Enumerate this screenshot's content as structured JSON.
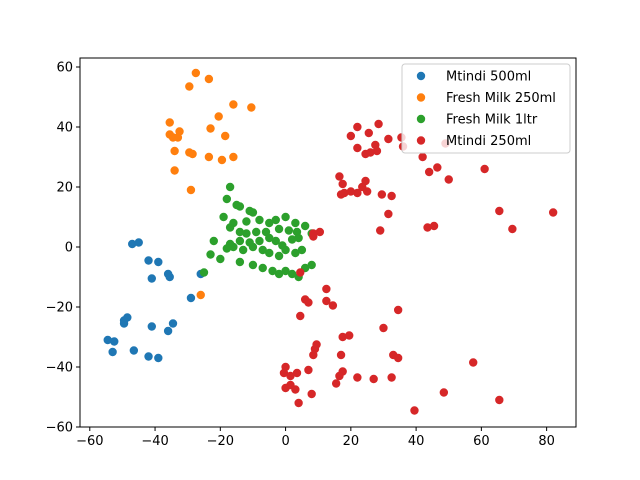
{
  "chart_data": {
    "type": "scatter",
    "title": "",
    "xlabel": "",
    "ylabel": "",
    "xlim": [
      -63,
      89
    ],
    "ylim": [
      -60,
      63
    ],
    "xticks": [
      -60,
      -40,
      -20,
      0,
      20,
      40,
      60,
      80
    ],
    "yticks": [
      -60,
      -40,
      -20,
      0,
      20,
      40,
      60
    ],
    "tick_labels": {
      "x": [
        "−60",
        "−40",
        "−20",
        "0",
        "20",
        "40",
        "60",
        "80"
      ],
      "y": [
        "−60",
        "−40",
        "−20",
        "0",
        "20",
        "40",
        "60"
      ]
    },
    "grid": false,
    "legend_position": "top-right",
    "series": [
      {
        "name": "Mtindi 500ml",
        "color": "#1f77b4",
        "points": [
          [
            -47,
            1
          ],
          [
            -45,
            1.5
          ],
          [
            -42,
            -4.5
          ],
          [
            -39,
            -5
          ],
          [
            -41,
            -10.5
          ],
          [
            -36,
            -9
          ],
          [
            -35.5,
            -10
          ],
          [
            -26,
            -9
          ],
          [
            -29,
            -17
          ],
          [
            -34.5,
            -25.5
          ],
          [
            -36,
            -28
          ],
          [
            -41,
            -26.5
          ],
          [
            -48.5,
            -23.5
          ],
          [
            -49.5,
            -24.5
          ],
          [
            -49.5,
            -25.5
          ],
          [
            -54.5,
            -31
          ],
          [
            -52.5,
            -31.5
          ],
          [
            -53,
            -35
          ],
          [
            -46.5,
            -34.5
          ],
          [
            -42,
            -36.5
          ],
          [
            -39,
            -37
          ]
        ]
      },
      {
        "name": "Fresh Milk 250ml",
        "color": "#ff7f0e",
        "points": [
          [
            -27.5,
            58
          ],
          [
            -23.5,
            56
          ],
          [
            -29.5,
            53.5
          ],
          [
            -16,
            47.5
          ],
          [
            -10.5,
            46.5
          ],
          [
            -20.5,
            43.5
          ],
          [
            -35.5,
            41.5
          ],
          [
            -23,
            39.5
          ],
          [
            -32.5,
            38.5
          ],
          [
            -35.5,
            37.5
          ],
          [
            -33,
            36.5
          ],
          [
            -34.5,
            36.5
          ],
          [
            -18.5,
            37
          ],
          [
            -34,
            32
          ],
          [
            -29.5,
            31.5
          ],
          [
            -28.5,
            31
          ],
          [
            -23.5,
            30
          ],
          [
            -19.5,
            29
          ],
          [
            -16,
            30
          ],
          [
            -34,
            25.5
          ],
          [
            -29,
            19
          ],
          [
            -26,
            -16
          ]
        ]
      },
      {
        "name": "Fresh Milk 1ltr",
        "color": "#2ca02c",
        "points": [
          [
            -17,
            20
          ],
          [
            -18,
            16
          ],
          [
            -15,
            14
          ],
          [
            -14,
            13.5
          ],
          [
            -11,
            12
          ],
          [
            -10,
            11.5
          ],
          [
            -19,
            10
          ],
          [
            -16,
            8
          ],
          [
            -12,
            8.5
          ],
          [
            -8,
            9
          ],
          [
            -5,
            8
          ],
          [
            -3,
            9
          ],
          [
            0,
            10
          ],
          [
            3,
            8
          ],
          [
            6,
            7
          ],
          [
            -17,
            6.5
          ],
          [
            -14,
            5
          ],
          [
            -12,
            4.5
          ],
          [
            -9,
            5
          ],
          [
            -6,
            5
          ],
          [
            -2,
            6
          ],
          [
            1,
            5.5
          ],
          [
            3.5,
            5
          ],
          [
            8,
            4.5
          ],
          [
            -22,
            2
          ],
          [
            -17,
            1
          ],
          [
            -14,
            2
          ],
          [
            -11,
            1.5
          ],
          [
            -8,
            2
          ],
          [
            -5,
            3
          ],
          [
            -3,
            2
          ],
          [
            -1,
            0.5
          ],
          [
            2,
            2.5
          ],
          [
            4,
            3
          ],
          [
            -23,
            -2.5
          ],
          [
            -20,
            -4
          ],
          [
            -18,
            -0.5
          ],
          [
            -16,
            0
          ],
          [
            -13,
            -1
          ],
          [
            -10,
            0
          ],
          [
            -7,
            -1
          ],
          [
            -5,
            -2
          ],
          [
            -2,
            -3
          ],
          [
            0,
            -1
          ],
          [
            3,
            -2
          ],
          [
            5,
            -1
          ],
          [
            -25,
            -8.5
          ],
          [
            -14,
            -5
          ],
          [
            -10,
            -6
          ],
          [
            -7,
            -7
          ],
          [
            -4,
            -8
          ],
          [
            -2,
            -9
          ],
          [
            0,
            -8
          ],
          [
            2,
            -9
          ],
          [
            4,
            -10
          ],
          [
            6,
            -7
          ],
          [
            8,
            -6
          ]
        ]
      },
      {
        "name": "Mtindi 250ml",
        "color": "#d62728",
        "points": [
          [
            22,
            40
          ],
          [
            28.5,
            41
          ],
          [
            25.5,
            38
          ],
          [
            20,
            37
          ],
          [
            31.5,
            36
          ],
          [
            35.5,
            36.5
          ],
          [
            36,
            33.5
          ],
          [
            27.5,
            34
          ],
          [
            28,
            32
          ],
          [
            22,
            33
          ],
          [
            24.5,
            31
          ],
          [
            26,
            31.5
          ],
          [
            49,
            34.5
          ],
          [
            42,
            30
          ],
          [
            46.5,
            26.5
          ],
          [
            44,
            25
          ],
          [
            24.5,
            22
          ],
          [
            16.5,
            23.5
          ],
          [
            17.5,
            21
          ],
          [
            23.5,
            20
          ],
          [
            25,
            18.5
          ],
          [
            18,
            18
          ],
          [
            22,
            18
          ],
          [
            20,
            18.5
          ],
          [
            17,
            17.5
          ],
          [
            29.5,
            17.5
          ],
          [
            32.5,
            17
          ],
          [
            31.5,
            11
          ],
          [
            61,
            26
          ],
          [
            50,
            22.5
          ],
          [
            65.5,
            12
          ],
          [
            82,
            11.5
          ],
          [
            43.5,
            6.5
          ],
          [
            45.5,
            7
          ],
          [
            69.5,
            6
          ],
          [
            29,
            5.5
          ],
          [
            10.5,
            5
          ],
          [
            8.5,
            4.5
          ],
          [
            8.5,
            3.5
          ],
          [
            4.5,
            -8.5
          ],
          [
            6,
            -17.5
          ],
          [
            7,
            -18.5
          ],
          [
            4.5,
            -23
          ],
          [
            12.5,
            -14
          ],
          [
            12.5,
            -18
          ],
          [
            14.5,
            -19.5
          ],
          [
            34.5,
            -21
          ],
          [
            30,
            -27
          ],
          [
            17.5,
            -30
          ],
          [
            19.5,
            -29.5
          ],
          [
            9.5,
            -32.5
          ],
          [
            9,
            -34
          ],
          [
            8.5,
            -36
          ],
          [
            17,
            -36
          ],
          [
            33,
            -36
          ],
          [
            34.5,
            -37
          ],
          [
            57.5,
            -38.5
          ],
          [
            0,
            -40
          ],
          [
            -0.5,
            -42
          ],
          [
            1.5,
            -43
          ],
          [
            3.5,
            -42
          ],
          [
            7,
            -41
          ],
          [
            17.5,
            -41.5
          ],
          [
            16.5,
            -43
          ],
          [
            22,
            -43.5
          ],
          [
            27,
            -44
          ],
          [
            32.5,
            -43.5
          ],
          [
            15.5,
            -45.5
          ],
          [
            1.5,
            -46
          ],
          [
            0,
            -47
          ],
          [
            3,
            -47.5
          ],
          [
            8,
            -49
          ],
          [
            48.5,
            -48.5
          ],
          [
            65.5,
            -51
          ],
          [
            4,
            -52
          ],
          [
            39.5,
            -54.5
          ]
        ]
      }
    ]
  }
}
